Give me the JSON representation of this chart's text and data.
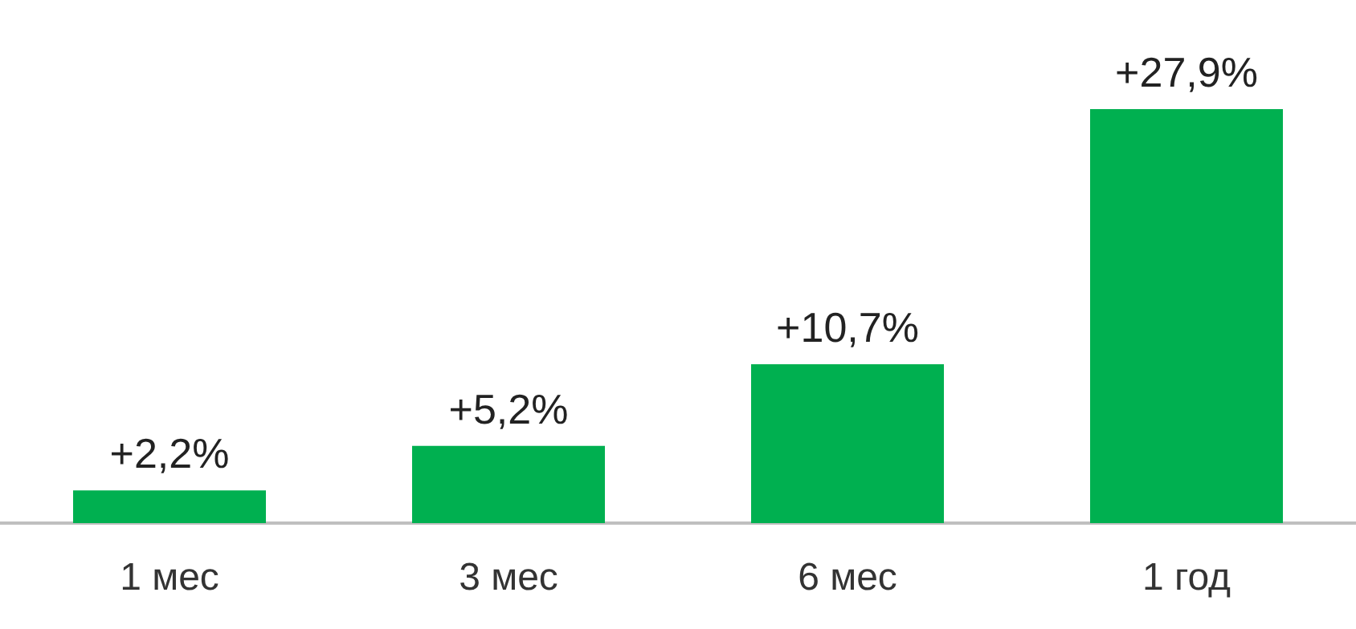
{
  "chart_data": {
    "type": "bar",
    "categories": [
      "1 мес",
      "3 мес",
      "6 мес",
      "1 год"
    ],
    "values": [
      2.2,
      5.2,
      10.7,
      27.9
    ],
    "value_labels": [
      "+2,2%",
      "+5,2%",
      "+10,7%",
      "+27,9%"
    ],
    "color": "#00b050",
    "tick_labels": "x"
  }
}
